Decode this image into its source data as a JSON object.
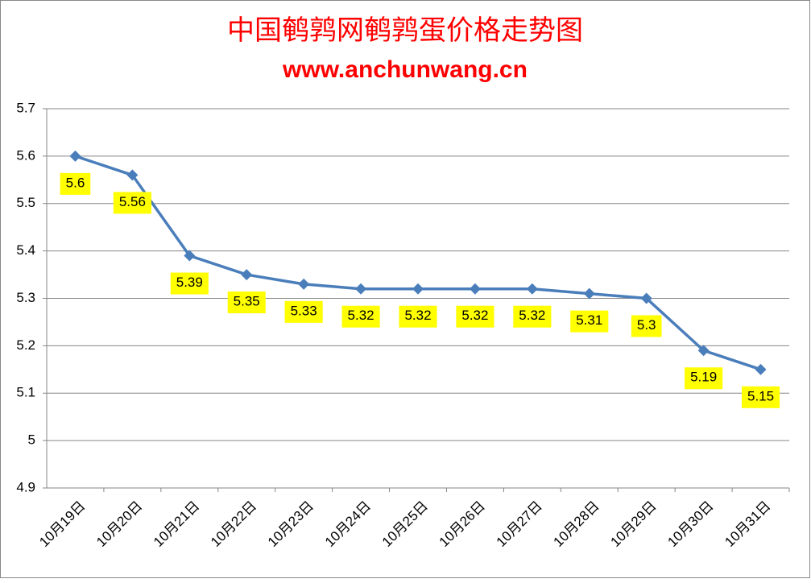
{
  "chart_data": {
    "type": "line",
    "title": "中国鹌鹑网鹌鹑蛋价格走势图",
    "subtitle": "www.anchunwang.cn",
    "categories": [
      "10月19日",
      "10月20日",
      "10月21日",
      "10月22日",
      "10月23日",
      "10月24日",
      "10月25日",
      "10月26日",
      "10月27日",
      "10月28日",
      "10月29日",
      "10月30日",
      "10月31日"
    ],
    "values": [
      5.6,
      5.56,
      5.39,
      5.35,
      5.33,
      5.32,
      5.32,
      5.32,
      5.32,
      5.31,
      5.3,
      5.19,
      5.15
    ],
    "color": "#4a7ebb",
    "label_color": "#ffff00",
    "ylim": [
      4.9,
      5.7
    ],
    "yticks": [
      4.9,
      5,
      5.1,
      5.2,
      5.3,
      5.4,
      5.5,
      5.6,
      5.7
    ],
    "grid": true
  }
}
